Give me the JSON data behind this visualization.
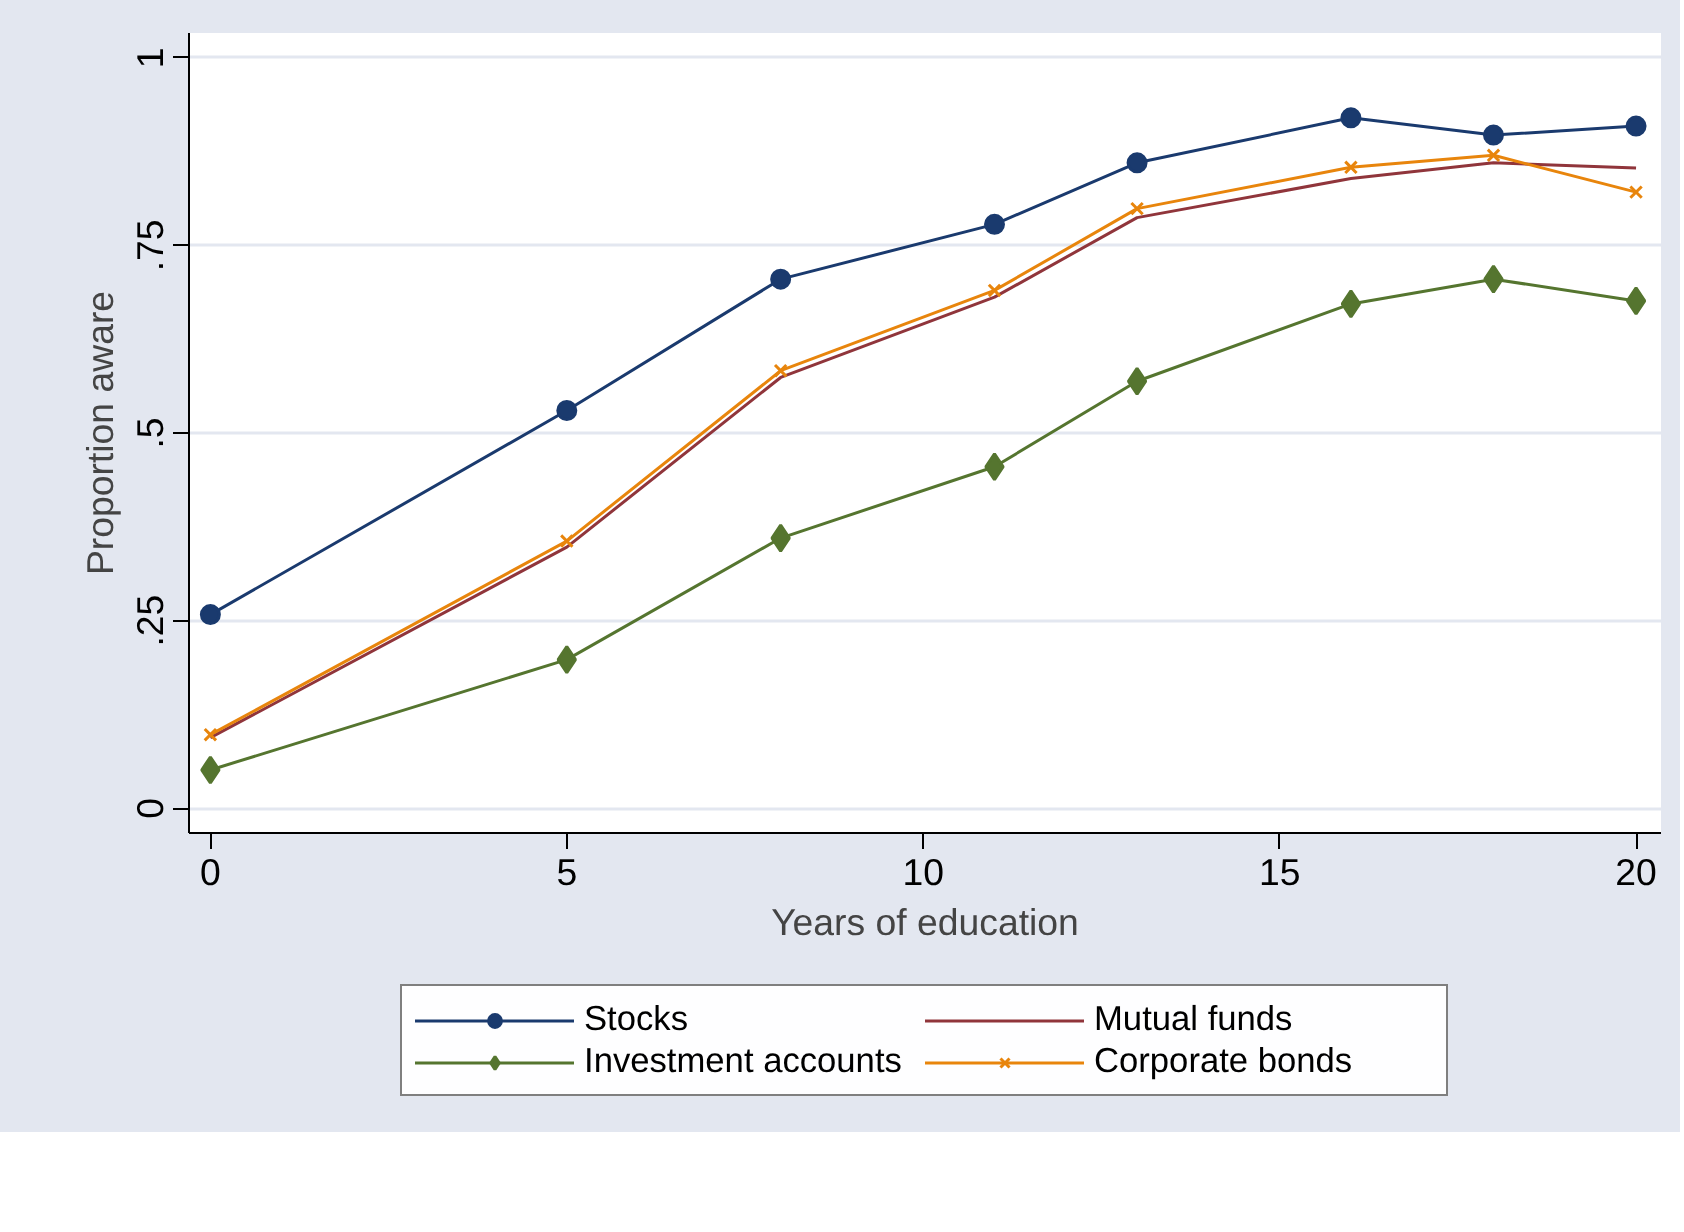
{
  "chart_data": {
    "type": "line",
    "xlabel": "Years of education",
    "ylabel": "Proportion aware",
    "x": [
      0,
      5,
      8,
      11,
      13,
      16,
      18,
      20
    ],
    "xlim": [
      -0.3,
      20.35
    ],
    "xticks": [
      0,
      5,
      10,
      15,
      20
    ],
    "ylim": [
      -0.033,
      1.033
    ],
    "yticks": [
      0,
      {
        "value": 0.25,
        "label": ".25"
      },
      {
        "value": 0.5,
        "label": ".5"
      },
      {
        "value": 0.75,
        "label": ".75"
      },
      1
    ],
    "grid": "y",
    "legend": "bottom",
    "line_style": "solid",
    "series": [
      {
        "name": "Stocks",
        "color": "#1a3a6e",
        "marker": "circle",
        "values": [
          0.258,
          0.53,
          0.705,
          0.778,
          0.86,
          0.92,
          0.897,
          0.909
        ]
      },
      {
        "name": "Mutual funds",
        "color": "#90353b",
        "marker": "none",
        "values": [
          0.094,
          0.348,
          0.574,
          0.681,
          0.787,
          0.839,
          0.86,
          0.853
        ]
      },
      {
        "name": "Investment accounts",
        "color": "#55752f",
        "marker": "diamond",
        "values": [
          0.051,
          0.198,
          0.36,
          0.455,
          0.569,
          0.672,
          0.705,
          0.676
        ]
      },
      {
        "name": "Corporate bonds",
        "color": "#e8850c",
        "marker": "cross",
        "values": [
          0.098,
          0.356,
          0.583,
          0.69,
          0.799,
          0.854,
          0.87,
          0.821
        ]
      }
    ]
  }
}
